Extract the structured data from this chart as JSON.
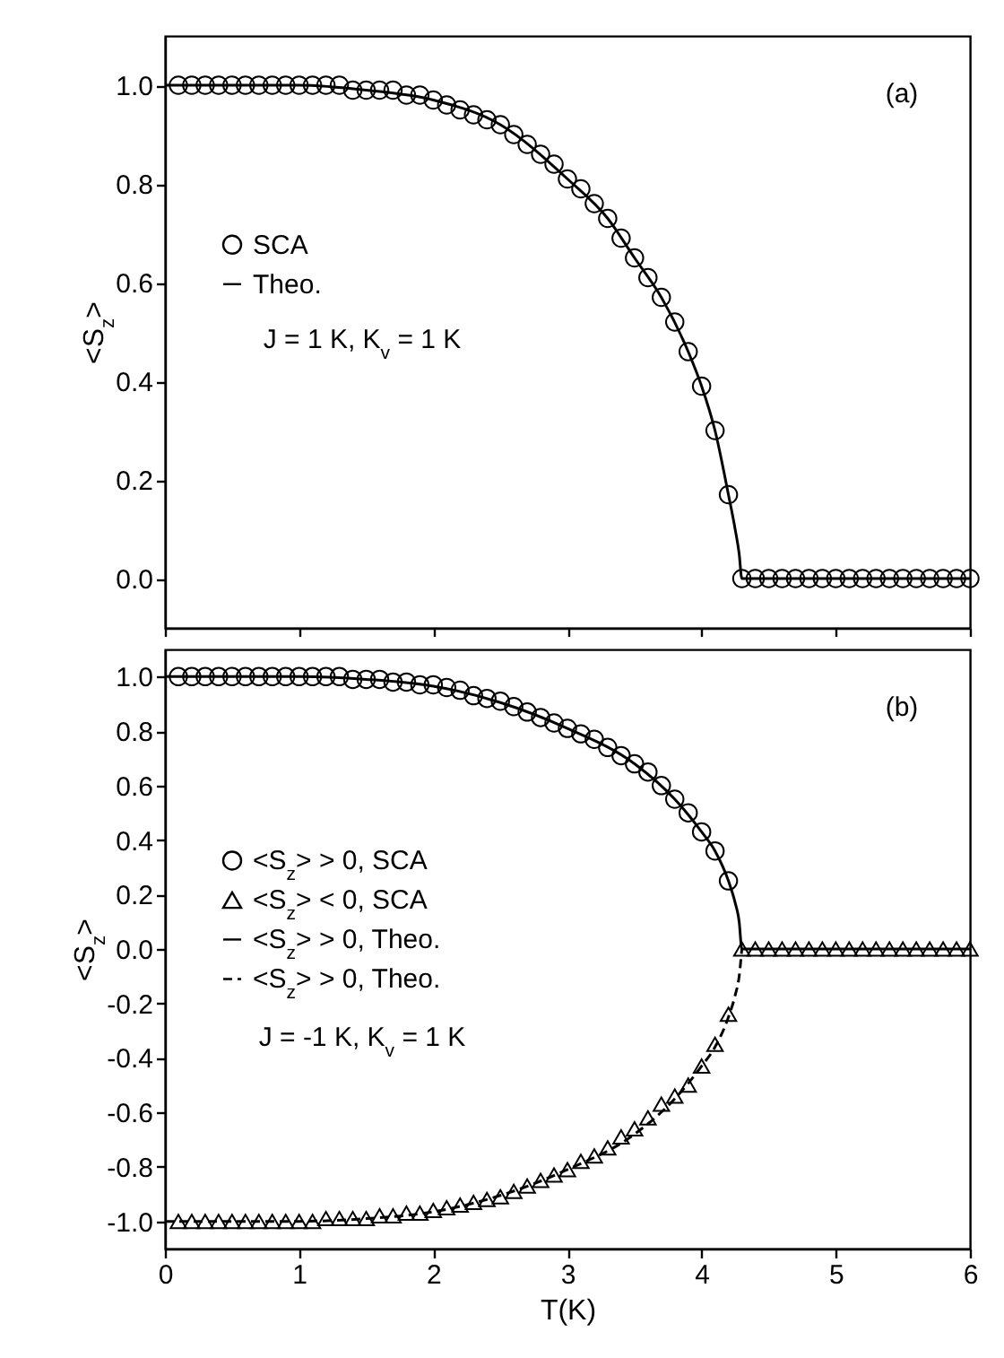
{
  "chart_data": [
    {
      "type": "scatter",
      "ylabel": "<S$_{z}$>",
      "xlim": [
        0,
        6
      ],
      "xticks": [
        0,
        1,
        2,
        3,
        4,
        5,
        6
      ],
      "ylim": [
        -0.1,
        1.1
      ],
      "yticks": [
        {
          "value": 0,
          "label": "0.0"
        },
        0.2,
        0.4,
        0.6,
        0.8,
        {
          "value": 1,
          "label": "1.0"
        }
      ],
      "tick_labels": "y",
      "legend": "left",
      "grid": false,
      "annotations": [
        "(a)",
        "J = 1 K,  K$_{v}$ = 1 K"
      ],
      "series": [
        {
          "name": "SCA",
          "type": "scatter",
          "marker": "circle",
          "color": "#000000",
          "x": [
            0.1,
            0.2,
            0.3,
            0.4,
            0.5,
            0.6,
            0.7,
            0.8,
            0.9,
            1.0,
            1.1,
            1.2,
            1.3,
            1.4,
            1.5,
            1.6,
            1.7,
            1.8,
            1.9,
            2.0,
            2.1,
            2.2,
            2.3,
            2.4,
            2.5,
            2.6,
            2.7,
            2.8,
            2.9,
            3.0,
            3.1,
            3.2,
            3.3,
            3.4,
            3.5,
            3.6,
            3.7,
            3.8,
            3.9,
            4.0,
            4.1,
            4.2,
            4.3,
            4.4,
            4.5,
            4.6,
            4.7,
            4.8,
            4.9,
            5.0,
            5.1,
            5.2,
            5.3,
            5.4,
            5.5,
            5.6,
            5.7,
            5.8,
            5.9,
            6.0
          ],
          "values": [
            1,
            1,
            1,
            1,
            1,
            1,
            1,
            1,
            1,
            1,
            1,
            1,
            1,
            0.99,
            0.99,
            0.99,
            0.99,
            0.98,
            0.98,
            0.97,
            0.96,
            0.95,
            0.94,
            0.93,
            0.92,
            0.9,
            0.88,
            0.86,
            0.84,
            0.81,
            0.79,
            0.76,
            0.73,
            0.69,
            0.65,
            0.61,
            0.57,
            0.52,
            0.46,
            0.39,
            0.3,
            0.17,
            0,
            0,
            0,
            0,
            0,
            0,
            0,
            0,
            0,
            0,
            0,
            0,
            0,
            0,
            0,
            0,
            0,
            0
          ]
        },
        {
          "name": "Theo.",
          "type": "line",
          "line_style": "solid",
          "color": "#000000",
          "x": [
            0,
            1,
            1.5,
            2,
            2.5,
            3,
            3.3,
            3.5,
            3.7,
            3.9,
            4.0,
            4.1,
            4.2,
            4.25,
            4.28,
            4.3,
            6
          ],
          "values": [
            1,
            1,
            0.99,
            0.97,
            0.92,
            0.81,
            0.73,
            0.65,
            0.57,
            0.46,
            0.39,
            0.3,
            0.17,
            0.1,
            0.05,
            0,
            0
          ]
        }
      ]
    },
    {
      "type": "scatter",
      "xlabel": "T(K)",
      "ylabel": "<S$_{z}$>",
      "xlim": [
        0,
        6
      ],
      "xticks": [
        0,
        1,
        2,
        3,
        4,
        5,
        6
      ],
      "ylim": [
        -1.1,
        1.1
      ],
      "yticks": [
        {
          "value": -1,
          "label": "-1.0"
        },
        -0.8,
        -0.6,
        -0.4,
        -0.2,
        {
          "value": 0,
          "label": "0.0"
        },
        0.2,
        0.4,
        0.6,
        0.8,
        {
          "value": 1,
          "label": "1.0"
        }
      ],
      "legend": "left",
      "grid": false,
      "annotations": [
        "(b)",
        "J = -1 K,  K$_{v}$ = 1 K"
      ],
      "series": [
        {
          "name": "<S$_{z}$> > 0, SCA",
          "type": "scatter",
          "marker": "circle",
          "color": "#000000",
          "x": [
            0.1,
            0.2,
            0.3,
            0.4,
            0.5,
            0.6,
            0.7,
            0.8,
            0.9,
            1.0,
            1.1,
            1.2,
            1.3,
            1.4,
            1.5,
            1.6,
            1.7,
            1.8,
            1.9,
            2.0,
            2.1,
            2.2,
            2.3,
            2.4,
            2.5,
            2.6,
            2.7,
            2.8,
            2.9,
            3.0,
            3.1,
            3.2,
            3.3,
            3.4,
            3.5,
            3.6,
            3.7,
            3.8,
            3.9,
            4.0,
            4.1,
            4.2
          ],
          "values": [
            1,
            1,
            1,
            1,
            1,
            1,
            1,
            1,
            1,
            1,
            1,
            1,
            1,
            0.99,
            0.99,
            0.99,
            0.98,
            0.98,
            0.97,
            0.97,
            0.96,
            0.95,
            0.93,
            0.92,
            0.91,
            0.89,
            0.87,
            0.85,
            0.83,
            0.81,
            0.79,
            0.77,
            0.74,
            0.71,
            0.68,
            0.65,
            0.6,
            0.55,
            0.5,
            0.43,
            0.36,
            0.25
          ]
        },
        {
          "name": "<S$_{z}$> < 0, SCA",
          "type": "scatter",
          "marker": "triangle",
          "color": "#000000",
          "x": [
            0.1,
            0.2,
            0.3,
            0.4,
            0.5,
            0.6,
            0.7,
            0.8,
            0.9,
            1.0,
            1.1,
            1.2,
            1.3,
            1.4,
            1.5,
            1.6,
            1.7,
            1.8,
            1.9,
            2.0,
            2.1,
            2.2,
            2.3,
            2.4,
            2.5,
            2.6,
            2.7,
            2.8,
            2.9,
            3.0,
            3.1,
            3.2,
            3.3,
            3.4,
            3.5,
            3.6,
            3.7,
            3.8,
            3.9,
            4.0,
            4.1,
            4.2,
            4.3,
            4.4,
            4.5,
            4.6,
            4.7,
            4.8,
            4.9,
            5.0,
            5.1,
            5.2,
            5.3,
            5.4,
            5.5,
            5.6,
            5.7,
            5.8,
            5.9,
            6.0
          ],
          "values": [
            -1,
            -1,
            -1,
            -1,
            -1,
            -1,
            -1,
            -1,
            -1,
            -1,
            -1,
            -0.99,
            -0.99,
            -0.99,
            -0.99,
            -0.98,
            -0.98,
            -0.97,
            -0.97,
            -0.96,
            -0.95,
            -0.94,
            -0.93,
            -0.92,
            -0.91,
            -0.89,
            -0.87,
            -0.85,
            -0.83,
            -0.81,
            -0.78,
            -0.76,
            -0.73,
            -0.69,
            -0.66,
            -0.62,
            -0.57,
            -0.54,
            -0.5,
            -0.43,
            -0.35,
            -0.24,
            0,
            0,
            0,
            0,
            0,
            0,
            0,
            0,
            0,
            0,
            0,
            0,
            0,
            0,
            0,
            0,
            0,
            0
          ]
        },
        {
          "name": "<S$_{z}$> > 0, Theo.",
          "type": "line",
          "line_style": "solid",
          "color": "#000000",
          "x": [
            0,
            1,
            1.5,
            2,
            2.5,
            3,
            3.5,
            3.8,
            4.0,
            4.1,
            4.2,
            4.25,
            4.28,
            4.3,
            6
          ],
          "values": [
            1,
            1,
            0.99,
            0.965,
            0.905,
            0.81,
            0.68,
            0.55,
            0.43,
            0.36,
            0.25,
            0.17,
            0.1,
            0,
            0
          ]
        },
        {
          "name": "<S$_{z}$> > 0, Theo.",
          "type": "line",
          "line_style": "dashed",
          "color": "#000000",
          "x": [
            0,
            1,
            1.5,
            2,
            2.5,
            3,
            3.5,
            3.8,
            4.0,
            4.1,
            4.2,
            4.25,
            4.28,
            4.3
          ],
          "values": [
            -1,
            -1,
            -0.99,
            -0.965,
            -0.905,
            -0.81,
            -0.68,
            -0.55,
            -0.43,
            -0.36,
            -0.25,
            -0.17,
            -0.1,
            0
          ]
        }
      ]
    }
  ]
}
